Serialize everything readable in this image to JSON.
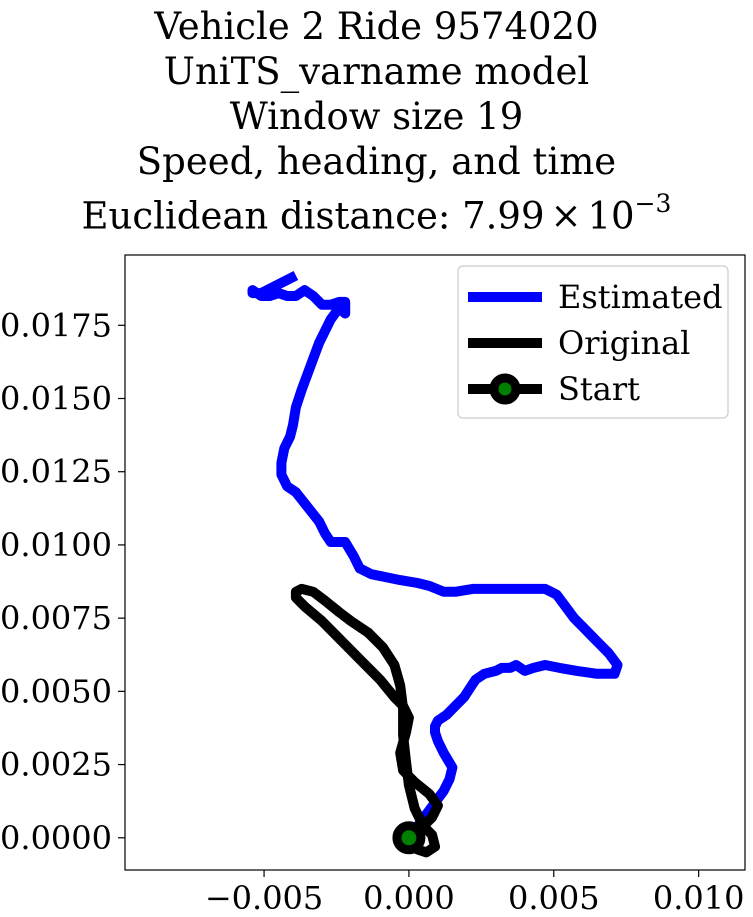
{
  "chart_data": {
    "type": "line",
    "title_lines": [
      "Vehicle 2 Ride 9574020",
      "UniTS_varname model",
      "Window size 19",
      "Speed, heading, and time"
    ],
    "title_distance_prefix": "Euclidean distance: 7.99",
    "title_distance_times": "×",
    "title_distance_base": "10",
    "title_distance_exponent": "−3",
    "xlabel": "",
    "ylabel": "",
    "xlim": [
      -0.0098,
      0.0116
    ],
    "ylim": [
      -0.0011,
      0.0199
    ],
    "xticks": [
      -0.005,
      0.0,
      0.005,
      0.01
    ],
    "xtick_labels": [
      "−0.005",
      "0.000",
      "0.005",
      "0.010"
    ],
    "yticks": [
      0.0,
      0.0025,
      0.005,
      0.0075,
      0.01,
      0.0125,
      0.015,
      0.0175
    ],
    "ytick_labels": [
      "0.0000",
      "0.0025",
      "0.0050",
      "0.0075",
      "0.0100",
      "0.0125",
      "0.0150",
      "0.0175"
    ],
    "grid": false,
    "legend_position": "upper-right",
    "series": [
      {
        "name": "Estimated",
        "color": "#0000ff",
        "x": [
          0.0,
          0.0003,
          0.0006,
          0.0009,
          0.0012,
          0.0014,
          0.0015,
          0.0012,
          0.001,
          0.0009,
          0.0009,
          0.001,
          0.0013,
          0.0016,
          0.0019,
          0.0021,
          0.0023,
          0.0026,
          0.003,
          0.0032,
          0.0035,
          0.0037,
          0.004,
          0.0043,
          0.0047,
          0.0052,
          0.0058,
          0.0065,
          0.0071,
          0.0072,
          0.0069,
          0.0066,
          0.0063,
          0.006,
          0.0057,
          0.0054,
          0.0051,
          0.0047,
          0.0042,
          0.0037,
          0.0032,
          0.0027,
          0.0022,
          0.0016,
          0.0012,
          0.0007,
          0.0003,
          -0.0003,
          -0.0008,
          -0.0013,
          -0.0017,
          -0.0019,
          -0.0022,
          -0.0025,
          -0.0027,
          -0.0029,
          -0.0031,
          -0.0035,
          -0.0039,
          -0.0042,
          -0.0044,
          -0.0044,
          -0.0043,
          -0.0041,
          -0.004,
          -0.0039,
          -0.0037,
          -0.0034,
          -0.0031,
          -0.0027,
          -0.0024,
          -0.0022,
          -0.0022,
          -0.0024,
          -0.0027,
          -0.003,
          -0.0033,
          -0.0036,
          -0.0039,
          -0.0042,
          -0.0045,
          -0.0048,
          -0.0051,
          -0.0054,
          -0.0054,
          -0.0051,
          -0.0047,
          -0.0043,
          -0.0039
        ],
        "y": [
          0.0,
          0.0004,
          0.0008,
          0.0012,
          0.0016,
          0.002,
          0.0024,
          0.0029,
          0.0033,
          0.0036,
          0.0038,
          0.004,
          0.0042,
          0.0045,
          0.0048,
          0.0051,
          0.0054,
          0.0056,
          0.0057,
          0.0058,
          0.0058,
          0.0059,
          0.0057,
          0.0058,
          0.0059,
          0.0058,
          0.0057,
          0.0056,
          0.0056,
          0.0059,
          0.0063,
          0.0066,
          0.0069,
          0.0072,
          0.0075,
          0.0079,
          0.0083,
          0.0085,
          0.0085,
          0.0085,
          0.0085,
          0.0085,
          0.0085,
          0.0084,
          0.0084,
          0.0086,
          0.0087,
          0.0088,
          0.0089,
          0.009,
          0.0092,
          0.0096,
          0.0101,
          0.0101,
          0.0101,
          0.0104,
          0.0108,
          0.0113,
          0.0118,
          0.012,
          0.0124,
          0.0128,
          0.0133,
          0.0137,
          0.0141,
          0.0147,
          0.0153,
          0.0161,
          0.0169,
          0.0177,
          0.0181,
          0.0179,
          0.0183,
          0.0183,
          0.0182,
          0.0182,
          0.0185,
          0.0187,
          0.0185,
          0.0185,
          0.0186,
          0.0185,
          0.0185,
          0.0187,
          0.0186,
          0.0186,
          0.0188,
          0.019,
          0.0192
        ]
      },
      {
        "name": "Original",
        "color": "#000000",
        "x": [
          0.0,
          0.0004,
          0.0008,
          0.001,
          0.0007,
          0.0002,
          -0.0002,
          -0.0003,
          -0.0001,
          0.0,
          -0.0002,
          -0.0005,
          -0.001,
          -0.0016,
          -0.0023,
          -0.003,
          -0.0036,
          -0.0039,
          -0.0039,
          -0.0037,
          -0.0033,
          -0.0029,
          -0.0024,
          -0.002,
          -0.0014,
          -0.0009,
          -0.0005,
          -0.0003,
          -0.0002,
          -0.0002,
          -0.0001,
          0.0,
          0.0002,
          0.0005,
          0.0008,
          0.0009,
          0.0006,
          0.0003,
          0.0002
        ],
        "y": [
          0.0,
          0.0003,
          0.0007,
          0.0011,
          0.0015,
          0.0019,
          0.0023,
          0.0029,
          0.0036,
          0.0041,
          0.0045,
          0.0048,
          0.0054,
          0.006,
          0.0067,
          0.0074,
          0.0079,
          0.0082,
          0.0084,
          0.0085,
          0.0084,
          0.0081,
          0.0077,
          0.0074,
          0.007,
          0.0065,
          0.0059,
          0.0052,
          0.0044,
          0.0035,
          0.0026,
          0.0018,
          0.001,
          0.0004,
          0.0001,
          -0.0003,
          -0.0005,
          -0.0004,
          -0.0002
        ]
      }
    ],
    "start": {
      "name": "Start",
      "x": 0.0,
      "y": 0.0,
      "marker_edge_color": "#000000",
      "marker_face_color": "#008000"
    }
  }
}
